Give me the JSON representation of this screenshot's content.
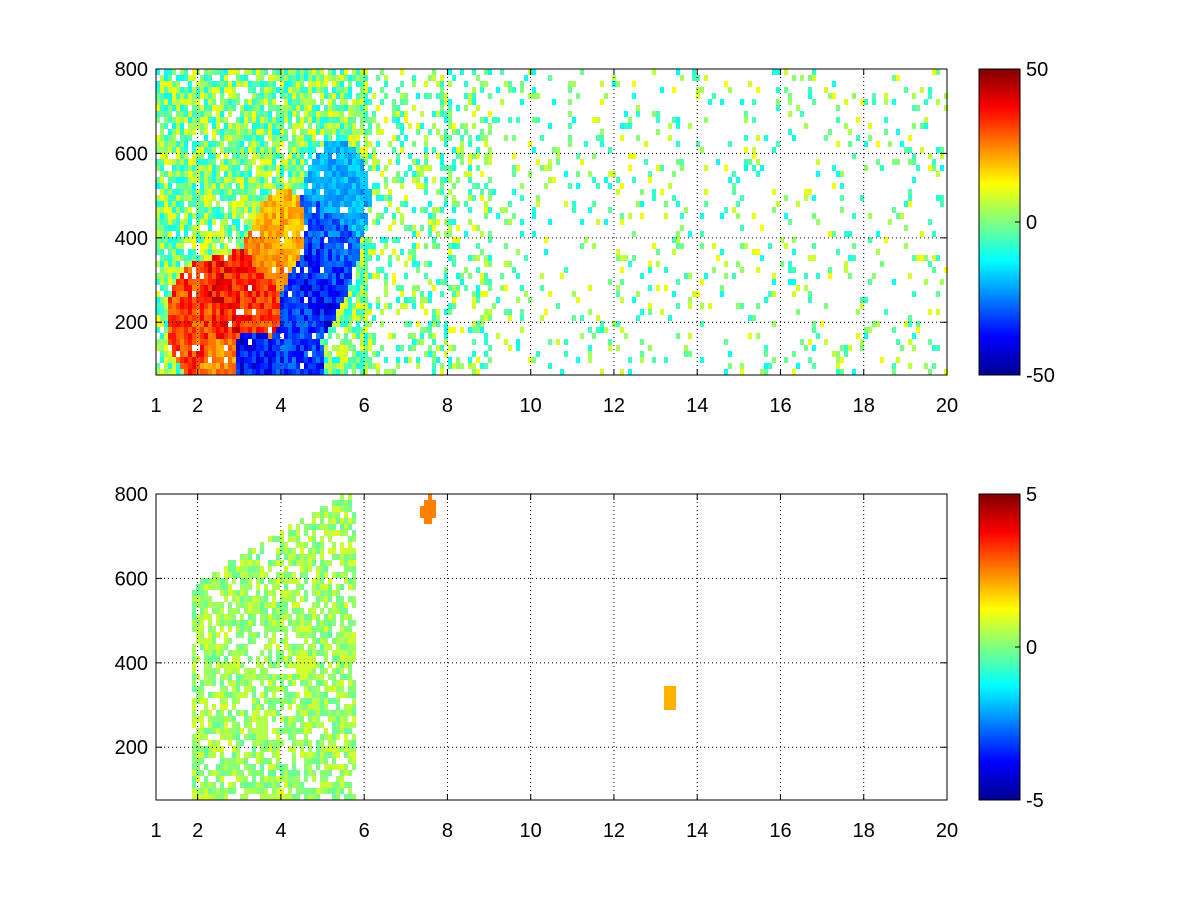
{
  "chart_data": [
    {
      "type": "heatmap",
      "title": "",
      "xlabel": "",
      "ylabel": "",
      "xlim": [
        1,
        20
      ],
      "ylim": [
        75,
        800
      ],
      "x_scale": "linear",
      "grid": true,
      "grid_style": "dotted",
      "x_ticks": [
        "1",
        "2",
        "4",
        "6",
        "8",
        "10",
        "12",
        "14",
        "16",
        "18",
        "20"
      ],
      "x_tick_values": [
        1,
        2,
        4,
        6,
        8,
        10,
        12,
        14,
        16,
        18,
        20
      ],
      "y_ticks": [
        "200",
        "400",
        "600",
        "800"
      ],
      "y_tick_values": [
        200,
        400,
        600,
        800
      ],
      "colorbar": {
        "colormap": "jet",
        "clim": [
          -50,
          50
        ],
        "tick_labels": [
          "50",
          "0",
          "-50"
        ],
        "tick_values": [
          50,
          0,
          -50
        ]
      },
      "features": [
        {
          "x": 2.0,
          "y": 210,
          "value": 40
        },
        {
          "x": 2.6,
          "y": 230,
          "value": 45
        },
        {
          "x": 3.2,
          "y": 250,
          "value": 42
        },
        {
          "x": 3.6,
          "y": 280,
          "value": 40
        },
        {
          "x": 3.8,
          "y": 330,
          "value": 30
        },
        {
          "x": 4.0,
          "y": 380,
          "value": 25
        },
        {
          "x": 4.3,
          "y": 260,
          "value": -40
        },
        {
          "x": 4.6,
          "y": 300,
          "value": -45
        },
        {
          "x": 4.9,
          "y": 360,
          "value": -40
        },
        {
          "x": 5.1,
          "y": 420,
          "value": -35
        },
        {
          "x": 5.3,
          "y": 500,
          "value": -25
        },
        {
          "x": 3.2,
          "y": 100,
          "value": -45
        },
        {
          "x": 4.2,
          "y": 100,
          "value": -40
        },
        {
          "x": 2.6,
          "y": 100,
          "value": 30
        }
      ]
    },
    {
      "type": "heatmap",
      "title": "",
      "xlabel": "",
      "ylabel": "",
      "xlim": [
        1,
        20
      ],
      "ylim": [
        75,
        800
      ],
      "x_scale": "linear",
      "grid": true,
      "grid_style": "dotted",
      "x_ticks": [
        "1",
        "2",
        "4",
        "6",
        "8",
        "10",
        "12",
        "14",
        "16",
        "18",
        "20"
      ],
      "x_tick_values": [
        1,
        2,
        4,
        6,
        8,
        10,
        12,
        14,
        16,
        18,
        20
      ],
      "y_ticks": [
        "200",
        "400",
        "600",
        "800"
      ],
      "y_tick_values": [
        200,
        400,
        600,
        800
      ],
      "colorbar": {
        "colormap": "jet",
        "clim": [
          -5,
          5
        ],
        "tick_labels": [
          "5",
          "0",
          "-5"
        ],
        "tick_values": [
          5,
          0,
          -5
        ]
      },
      "features": [
        {
          "x": 3.5,
          "y": 250,
          "value": 0.5
        },
        {
          "x": 4.5,
          "y": 400,
          "value": 0.8
        },
        {
          "x": 7.5,
          "y": 770,
          "value": 2.5
        },
        {
          "x": 13.3,
          "y": 320,
          "value": 2.0
        }
      ]
    }
  ]
}
